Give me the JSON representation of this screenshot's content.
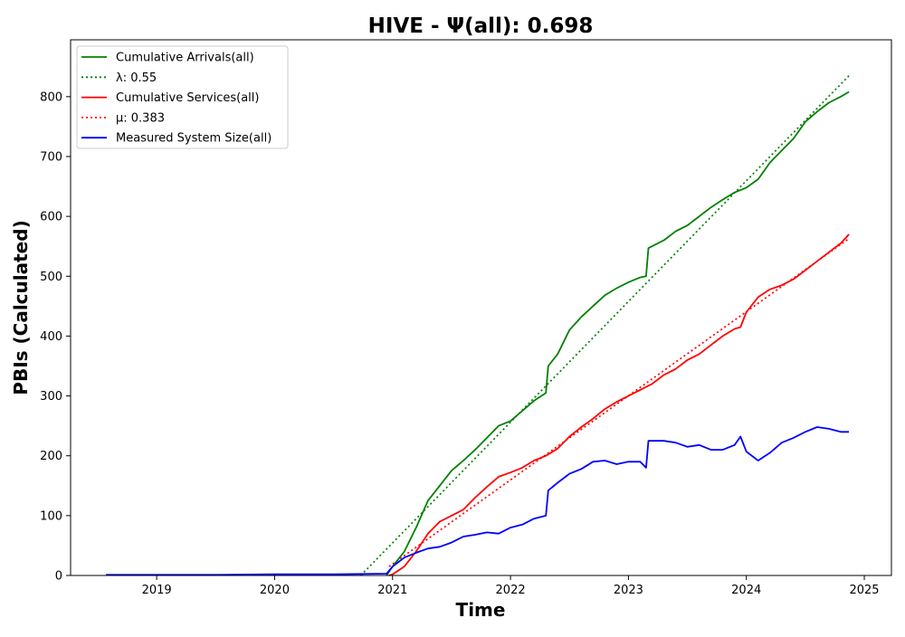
{
  "chart_data": {
    "type": "line",
    "title": "HIVE -  Ψ(all): 0.698",
    "xlabel": "Time",
    "ylabel": "PBIs (Calculated)",
    "xlim": [
      2018.27,
      2025.23
    ],
    "ylim": [
      0,
      895
    ],
    "x_ticks": [
      2019,
      2020,
      2021,
      2022,
      2023,
      2024,
      2025
    ],
    "x_tick_labels": [
      "2019",
      "2020",
      "2021",
      "2022",
      "2023",
      "2024",
      "2025"
    ],
    "y_ticks": [
      0,
      100,
      200,
      300,
      400,
      500,
      600,
      700,
      800
    ],
    "y_tick_labels": [
      "0",
      "100",
      "200",
      "300",
      "400",
      "500",
      "600",
      "700",
      "800"
    ],
    "grid": false,
    "legend_position": "top-left",
    "series": [
      {
        "name": "Cumulative Arrivals(all)",
        "style": "solid",
        "color": "#008000",
        "x": [
          2020.95,
          2021.0,
          2021.1,
          2021.2,
          2021.3,
          2021.4,
          2021.5,
          2021.6,
          2021.7,
          2021.8,
          2021.9,
          2022.0,
          2022.1,
          2022.2,
          2022.3,
          2022.32,
          2022.4,
          2022.5,
          2022.6,
          2022.7,
          2022.8,
          2022.9,
          2023.0,
          2023.1,
          2023.15,
          2023.17,
          2023.3,
          2023.4,
          2023.5,
          2023.6,
          2023.7,
          2023.8,
          2023.9,
          2024.0,
          2024.1,
          2024.2,
          2024.3,
          2024.4,
          2024.5,
          2024.6,
          2024.7,
          2024.8,
          2024.87
        ],
        "values": [
          0,
          15,
          40,
          80,
          125,
          150,
          175,
          192,
          210,
          230,
          250,
          258,
          275,
          292,
          305,
          350,
          370,
          410,
          432,
          450,
          468,
          480,
          490,
          498,
          500,
          547,
          560,
          575,
          585,
          600,
          615,
          628,
          640,
          648,
          662,
          690,
          710,
          730,
          758,
          775,
          790,
          800,
          808
        ]
      },
      {
        "name": "λ: 0.55",
        "style": "dotted",
        "color": "#008000",
        "x": [
          2020.73,
          2024.87
        ],
        "values": [
          0,
          835
        ]
      },
      {
        "name": "Cumulative Services(all)",
        "style": "solid",
        "color": "#ff0000",
        "x": [
          2020.97,
          2021.0,
          2021.1,
          2021.2,
          2021.3,
          2021.4,
          2021.5,
          2021.6,
          2021.7,
          2021.8,
          2021.9,
          2022.0,
          2022.1,
          2022.2,
          2022.3,
          2022.4,
          2022.5,
          2022.6,
          2022.7,
          2022.8,
          2022.9,
          2023.0,
          2023.1,
          2023.2,
          2023.3,
          2023.4,
          2023.5,
          2023.6,
          2023.7,
          2023.8,
          2023.9,
          2023.95,
          2024.0,
          2024.1,
          2024.2,
          2024.3,
          2024.4,
          2024.5,
          2024.6,
          2024.7,
          2024.8,
          2024.87
        ],
        "values": [
          0,
          2,
          15,
          40,
          70,
          90,
          100,
          110,
          130,
          148,
          165,
          172,
          180,
          192,
          200,
          212,
          232,
          248,
          262,
          278,
          290,
          300,
          310,
          320,
          335,
          345,
          360,
          370,
          385,
          400,
          412,
          415,
          440,
          465,
          478,
          485,
          495,
          510,
          525,
          540,
          555,
          570
        ]
      },
      {
        "name": "μ: 0.383",
        "style": "dotted",
        "color": "#ff0000",
        "x": [
          2020.97,
          2024.87
        ],
        "values": [
          15,
          563
        ]
      },
      {
        "name": "Measured System Size(all)",
        "style": "solid",
        "color": "#0000ff",
        "x": [
          2018.57,
          2019.0,
          2019.5,
          2020.0,
          2020.5,
          2020.95,
          2021.0,
          2021.1,
          2021.2,
          2021.3,
          2021.4,
          2021.5,
          2021.6,
          2021.7,
          2021.8,
          2021.9,
          2022.0,
          2022.1,
          2022.2,
          2022.3,
          2022.32,
          2022.4,
          2022.5,
          2022.6,
          2022.7,
          2022.8,
          2022.9,
          2023.0,
          2023.1,
          2023.15,
          2023.17,
          2023.3,
          2023.4,
          2023.5,
          2023.6,
          2023.7,
          2023.8,
          2023.9,
          2023.95,
          2024.0,
          2024.1,
          2024.2,
          2024.3,
          2024.4,
          2024.5,
          2024.6,
          2024.7,
          2024.8,
          2024.87
        ],
        "values": [
          1,
          1,
          1,
          2,
          2,
          3,
          15,
          30,
          38,
          45,
          48,
          55,
          65,
          68,
          72,
          70,
          80,
          85,
          95,
          100,
          142,
          155,
          170,
          178,
          190,
          192,
          186,
          190,
          190,
          180,
          225,
          225,
          222,
          215,
          218,
          210,
          210,
          218,
          232,
          207,
          192,
          205,
          222,
          230,
          240,
          248,
          245,
          240,
          240
        ]
      }
    ]
  }
}
